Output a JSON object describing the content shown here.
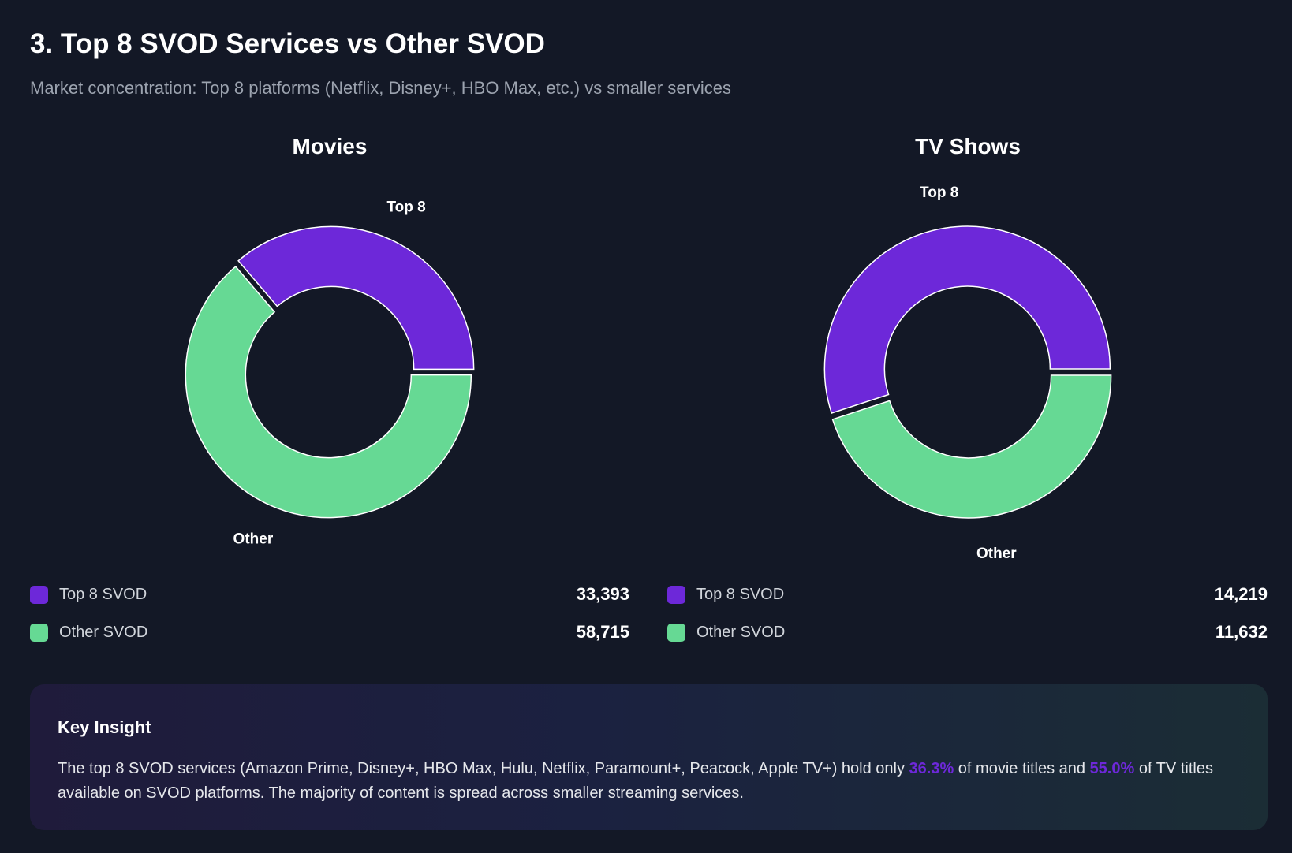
{
  "header": {
    "title": "3. Top 8 SVOD Services vs Other SVOD",
    "subtitle": "Market concentration: Top 8 platforms (Netflix, Disney+, HBO Max, etc.) vs smaller services"
  },
  "colors": {
    "top8": "#6d28d9",
    "other": "#66d994",
    "background": "#131826"
  },
  "chart_data": [
    {
      "type": "pie",
      "variant": "donut",
      "title": "Movies",
      "categories": [
        "Top 8",
        "Other"
      ],
      "values": [
        33393,
        58715
      ],
      "slice_labels": [
        "Top 8",
        "Other"
      ],
      "legend": [
        {
          "label": "Top 8 SVOD",
          "value": "33,393"
        },
        {
          "label": "Other SVOD",
          "value": "58,715"
        }
      ]
    },
    {
      "type": "pie",
      "variant": "donut",
      "title": "TV Shows",
      "categories": [
        "Top 8",
        "Other"
      ],
      "values": [
        14219,
        11632
      ],
      "slice_labels": [
        "Top 8",
        "Other"
      ],
      "legend": [
        {
          "label": "Top 8 SVOD",
          "value": "14,219"
        },
        {
          "label": "Other SVOD",
          "value": "11,632"
        }
      ]
    }
  ],
  "insight": {
    "title": "Key Insight",
    "text_before": "The top 8 SVOD services (Amazon Prime, Disney+, HBO Max, Hulu, Netflix, Paramount+, Peacock, Apple TV+) hold only ",
    "movie_pct": "36.3%",
    "text_middle": " of movie titles and ",
    "tv_pct": "55.0%",
    "text_after": " of TV titles available on SVOD platforms. The majority of content is spread across smaller streaming services."
  }
}
